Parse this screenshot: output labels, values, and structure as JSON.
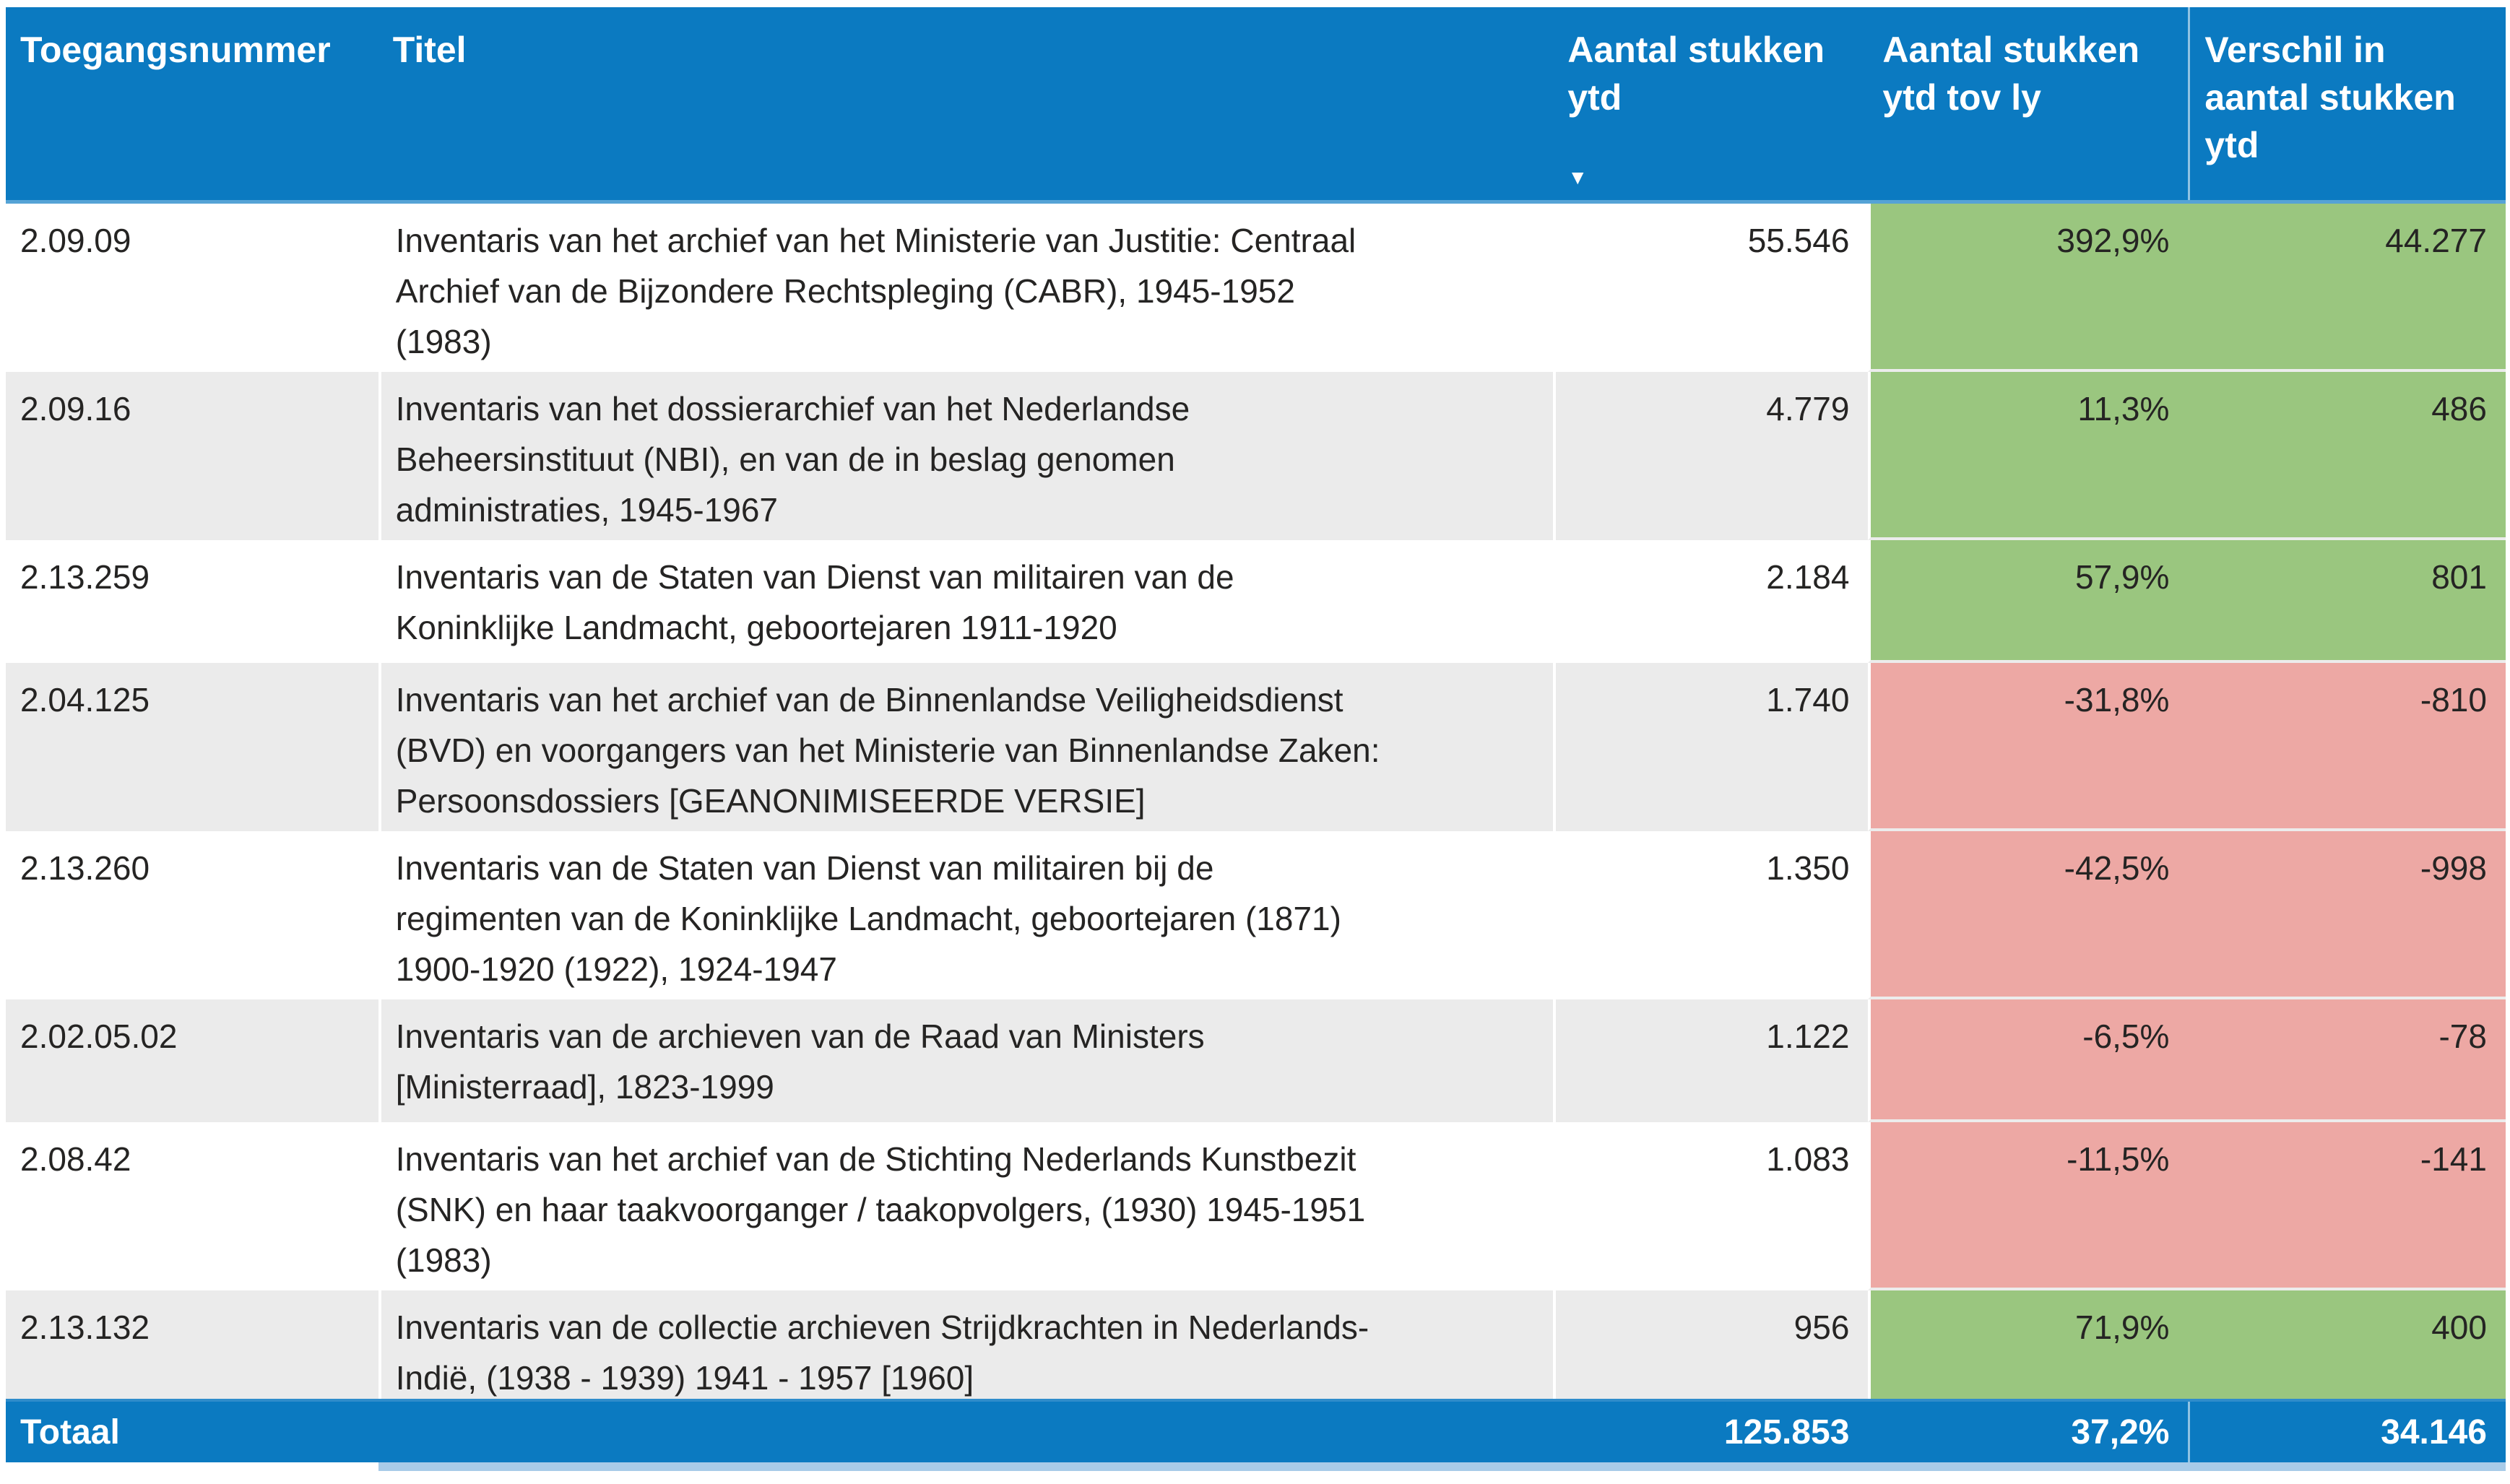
{
  "chart_data": {
    "type": "table",
    "columns": [
      "Toegangsnummer",
      "Titel",
      "Aantal stukken\nytd",
      "Aantal stukken\nytd tov ly",
      "Verschil in\naantal stukken\nytd"
    ],
    "sort": {
      "column": "Aantal stukken ytd",
      "direction": "descending",
      "icon": "▼"
    },
    "rows": [
      [
        "2.09.09",
        "Inventaris van het archief van het Ministerie van Justitie: Centraal\nArchief van de Bijzondere Rechtspleging (CABR), 1945-1952\n(1983)",
        "55.546",
        "392,9%",
        "44.277"
      ],
      [
        "2.09.16",
        "Inventaris van het dossierarchief van het Nederlandse\nBeheersinstituut (NBI), en van de in beslag genomen\nadministraties, 1945-1967",
        "4.779",
        "11,3%",
        "486"
      ],
      [
        "2.13.259",
        "Inventaris van de Staten van Dienst van militairen van de\nKoninklijke Landmacht, geboortejaren 1911-1920",
        "2.184",
        "57,9%",
        "801"
      ],
      [
        "2.04.125",
        "Inventaris van het archief van de Binnenlandse Veiligheidsdienst\n(BVD) en voorgangers van het Ministerie van Binnenlandse Zaken:\nPersoonsdossiers [GEANONIMISEERDE VERSIE]",
        "1.740",
        "-31,8%",
        "-810"
      ],
      [
        "2.13.260",
        "Inventaris van de Staten van Dienst van militairen bij de\nregimenten van de Koninklijke Landmacht, geboortejaren (1871)\n1900-1920 (1922), 1924-1947",
        "1.350",
        "-42,5%",
        "-998"
      ],
      [
        "2.02.05.02",
        "Inventaris van de archieven van de Raad van Ministers\n[Ministerraad], 1823-1999",
        "1.122",
        "-6,5%",
        "-78"
      ],
      [
        "2.08.42",
        "Inventaris van het archief van de Stichting Nederlands Kunstbezit\n(SNK) en haar taakvoorganger / taakopvolgers, (1930) 1945-1951\n(1983)",
        "1.083",
        "-11,5%",
        "-141"
      ],
      [
        "2.13.132",
        "Inventaris van de collectie archieven Strijdkrachten in Nederlands-\nIndië, (1938 - 1939) 1941 - 1957 [1960]",
        "956",
        "71,9%",
        "400"
      ]
    ],
    "row_trends": [
      "positive",
      "positive",
      "positive",
      "negative",
      "negative",
      "negative",
      "negative",
      "positive"
    ],
    "total": {
      "label": "Totaal",
      "aantal_stukken_ytd": "125.853",
      "ytd_tov_ly": "37,2%",
      "verschil": "34.146"
    },
    "colors": {
      "header_blue": "#0b7ac1",
      "positive_green": "#9ac67f",
      "negative_red": "#eda8a4",
      "alt_row_gray": "#ebebeb",
      "scrollbar_blue": "#a8cbe8",
      "text_dark": "#252423"
    }
  }
}
